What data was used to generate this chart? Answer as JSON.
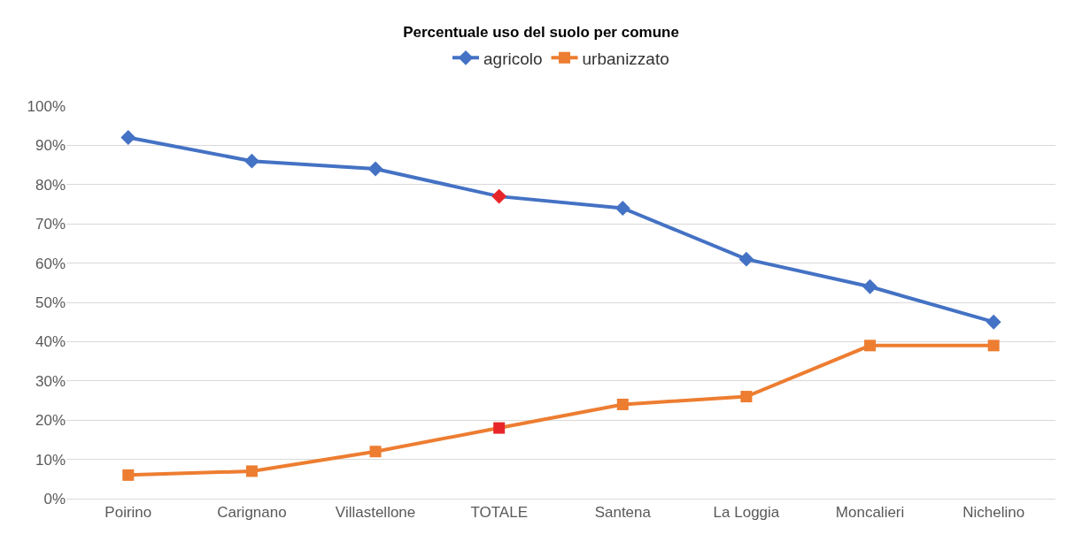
{
  "chart_data": {
    "type": "line",
    "title": "Percentuale uso del suolo per comune",
    "categories": [
      "Poirino",
      "Carignano",
      "Villastellone",
      "TOTALE",
      "Santena",
      "La Loggia",
      "Moncalieri",
      "Nichelino"
    ],
    "series": [
      {
        "name": "agricolo",
        "color": "#4472c4",
        "marker": "diamond",
        "colors": [
          "#4472c4",
          "#4472c4",
          "#4472c4",
          "#e8262a",
          "#4472c4",
          "#4472c4",
          "#4472c4",
          "#4472c4"
        ],
        "values": [
          92,
          86,
          84,
          77,
          74,
          61,
          54,
          45
        ]
      },
      {
        "name": "urbanizzato",
        "color": "#ed7d31",
        "marker": "square",
        "colors": [
          "#ed7d31",
          "#ed7d31",
          "#ed7d31",
          "#e8262a",
          "#ed7d31",
          "#ed7d31",
          "#ed7d31",
          "#ed7d31"
        ],
        "values": [
          6,
          7,
          12,
          18,
          24,
          26,
          39,
          39
        ]
      }
    ],
    "ylim": [
      0,
      100
    ],
    "yticks": [
      {
        "value": 0,
        "label": "0%"
      },
      {
        "value": 10,
        "label": "10%"
      },
      {
        "value": 20,
        "label": "20%"
      },
      {
        "value": 30,
        "label": "30%"
      },
      {
        "value": 40,
        "label": "40%"
      },
      {
        "value": 50,
        "label": "50%"
      },
      {
        "value": 60,
        "label": "60%"
      },
      {
        "value": 70,
        "label": "70%"
      },
      {
        "value": 80,
        "label": "80%"
      },
      {
        "value": 90,
        "label": "90%"
      },
      {
        "value": 100,
        "label": "100%"
      }
    ],
    "grid": "y",
    "legend": "top",
    "line_style": "solid"
  }
}
